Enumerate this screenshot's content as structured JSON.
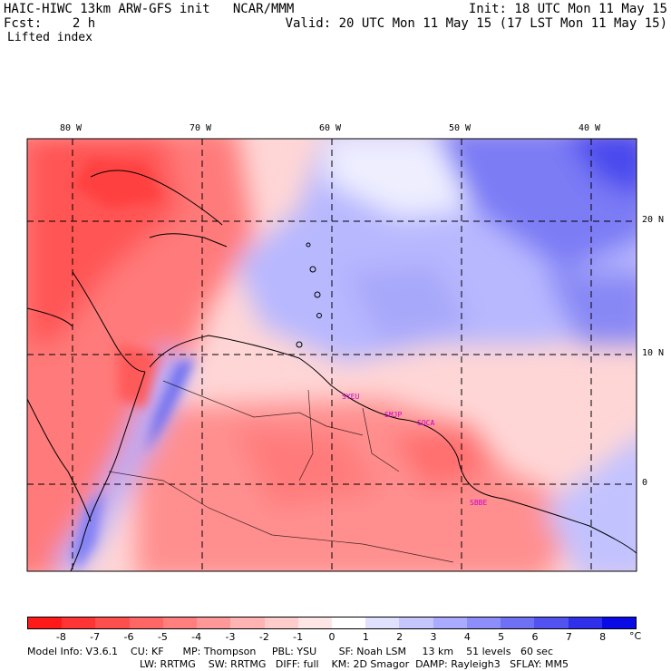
{
  "header": {
    "line1_left": "HAIC-HIWC 13km ARW-GFS init   NCAR/MMM",
    "line2_left": "Fcst:    2 h",
    "line3_left": "Lifted index",
    "line1_right": "Init: 18 UTC Mon 11 May 15",
    "line2_right": "Valid: 20 UTC Mon 11 May 15 (17 LST Mon 11 May 15)"
  },
  "map": {
    "lon_labels": [
      "80 W",
      "70 W",
      "60 W",
      "50 W",
      "40 W"
    ],
    "lat_labels": [
      "20 N",
      "10 N",
      "0"
    ],
    "stations": [
      "SYEU",
      "SMJP",
      "SOCA",
      "SBBE"
    ]
  },
  "colorbar": {
    "ticks": [
      "-8",
      "-7",
      "-6",
      "-5",
      "-4",
      "-3",
      "-2",
      "-1",
      "0",
      "1",
      "2",
      "3",
      "4",
      "5",
      "6",
      "7",
      "8"
    ],
    "unit": "°C",
    "colors": [
      "#ff1a1a",
      "#ff3535",
      "#ff4e4e",
      "#ff6666",
      "#ff7f7f",
      "#ff9999",
      "#ffb3b3",
      "#ffcccc",
      "#ffe6e6",
      "#ffffff",
      "#e0e0ff",
      "#c6c6ff",
      "#aaaaff",
      "#8e8efa",
      "#7070f5",
      "#5252f0",
      "#3030ea",
      "#0a0ae6"
    ]
  },
  "footer": {
    "line1": "Model Info: V3.6.1    CU: KF      MP: Thompson     PBL: YSU       SF: Noah LSM     13 km    51 levels   60 sec",
    "line2": "LW: RRTMG    SW: RRTMG   DIFF: full    KM: 2D Smagor  DAMP: Rayleigh3   SFLAY: MM5"
  }
}
